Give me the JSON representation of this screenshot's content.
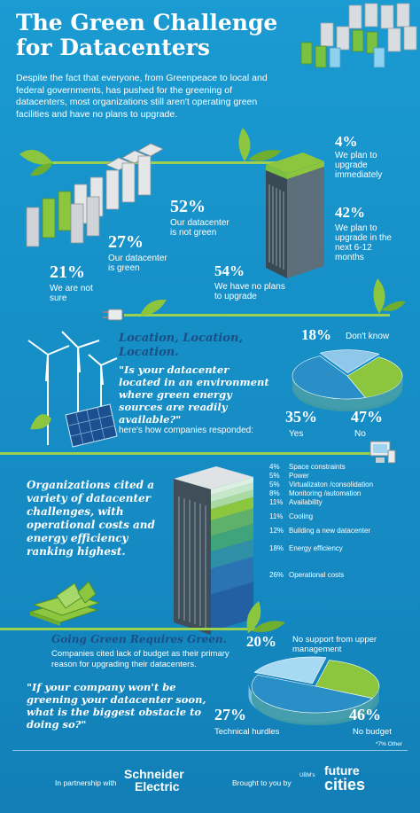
{
  "header": {
    "title_line1": "The Green Challenge",
    "title_line2": "for Datacenters",
    "intro": "Despite the fact that everyone, from Greenpeace to local and federal governments, has pushed for the greening of datacenters, most organizations still aren't operating green facilities and have no plans to upgrade."
  },
  "section1": {
    "stats": [
      {
        "pct": "52%",
        "label": "Our datacenter is not green"
      },
      {
        "pct": "27%",
        "label": "Our datacenter is green"
      },
      {
        "pct": "21%",
        "label": "We are not sure"
      }
    ],
    "plans": [
      {
        "pct": "4%",
        "label": "We plan to upgrade immediately"
      },
      {
        "pct": "42%",
        "label": "We plan to upgrade in the next 6-12 months"
      },
      {
        "pct": "54%",
        "label": "We have no plans to upgrade"
      }
    ]
  },
  "section2": {
    "heading1": "Location, Location,",
    "heading2": "Location.",
    "question": "\"Is your datacenter located in an environment where green energy sources are readily available?\"",
    "responded": "here's how companies responded:",
    "colors": {
      "dont_know": "#8fc7ea",
      "no": "#2a8fc6",
      "yes": "#8cc63f"
    }
  },
  "section3": {
    "heading": "Organizations cited a variety of datacenter challenges, with operational costs and energy efficiency ranking highest."
  },
  "section4": {
    "heading": "Going Green Requires Green.",
    "subtext": "Companies cited lack of budget as their primary reason for upgrading their datacenters.",
    "question": "\"If your company won't be greening your datacenter soon, what is the biggest obstacle to doing so?\"",
    "footnote": "*7% Other"
  },
  "footer": {
    "partnership": "In partnership with",
    "schneider1": "Schneider",
    "schneider2": "Electric",
    "brought": "Brought to you by",
    "ubm": "UBM's",
    "future": "future",
    "cities": "cities"
  },
  "chart_data": [
    {
      "type": "pie",
      "labels": [
        "Don't know",
        "Yes",
        "No"
      ],
      "values": [
        18,
        35,
        47
      ],
      "pct_labels": [
        "18%",
        "35%",
        "47%"
      ]
    },
    {
      "type": "bar",
      "categories": [
        "Space constraints",
        "Power",
        "Virtualizaton /consolidation",
        "Monitoring /automation",
        "Availability",
        "Cooling",
        "Building a new datacenter",
        "Energy efficiency",
        "Operational costs"
      ],
      "values": [
        4,
        5,
        5,
        8,
        11,
        11,
        12,
        18,
        26
      ],
      "pct_labels": [
        "4%",
        "5%",
        "5%",
        "8%",
        "11%",
        "11%",
        "12%",
        "18%",
        "26%"
      ]
    },
    {
      "type": "pie",
      "labels": [
        "No support from upper management",
        "Technical hurdles",
        "No budget"
      ],
      "values": [
        20,
        27,
        46
      ],
      "pct_labels": [
        "20%",
        "27%",
        "46%"
      ]
    }
  ]
}
